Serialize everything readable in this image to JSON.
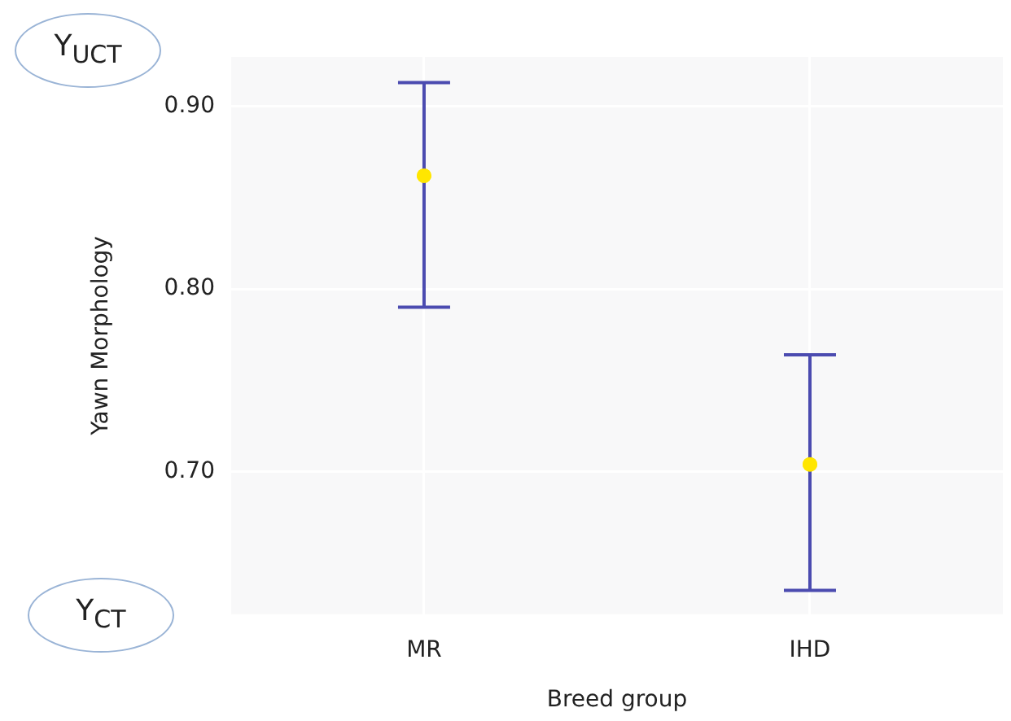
{
  "chart_data": {
    "type": "scatter",
    "xlabel": "Breed group",
    "ylabel": "Yawn Morphology",
    "categories": [
      "MR",
      "IHD"
    ],
    "series": [
      {
        "color": "#ffe600",
        "values": [
          0.862,
          0.704
        ],
        "errors": [
          [
            0.79,
            0.913
          ],
          [
            0.635,
            0.764
          ]
        ]
      }
    ],
    "ylim": [
      0.622,
      0.927
    ],
    "yticks": [
      {
        "value": 0.9,
        "label": "0.90"
      },
      {
        "value": 0.8,
        "label": "0.80"
      },
      {
        "value": 0.7,
        "label": "0.70"
      }
    ],
    "grid": true,
    "legend": false,
    "marker": "circle",
    "annotations": [
      "Y$_{UCT}$",
      "Y$_{CT}$"
    ]
  }
}
